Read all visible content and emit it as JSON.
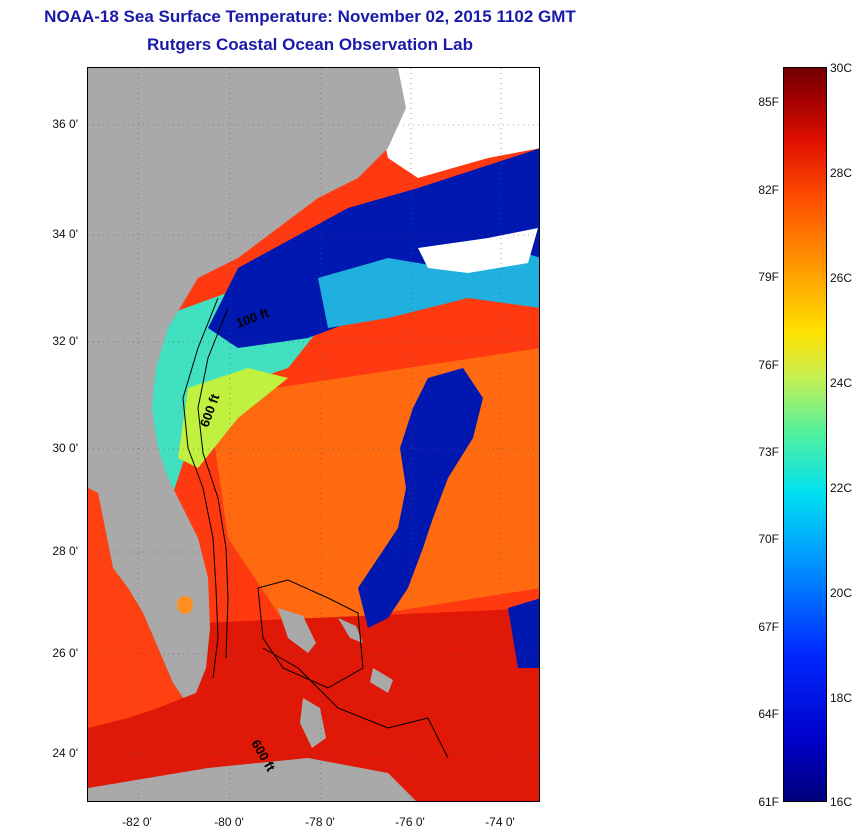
{
  "title": "NOAA-18 Sea Surface Temperature:  November 02, 2015 1102 GMT",
  "subtitle": "Rutgers Coastal Ocean Observation Lab",
  "map": {
    "lat_labels": [
      "36 0'",
      "34 0'",
      "32 0'",
      "30 0'",
      "28 0'",
      "26 0'",
      "24 0'"
    ],
    "lon_labels": [
      "-82 0'",
      "-80 0'",
      "-78 0'",
      "-76 0'",
      "-74 0'"
    ],
    "isobath_labels": [
      "100 ft",
      "600 ft",
      "600 ft"
    ],
    "colors": {
      "land": "#a9a9a9",
      "cold": "#0010a0",
      "warm": "#ff3010",
      "hot": "#c00000",
      "cloud": "#ffffff"
    }
  },
  "colorbar": {
    "fahrenheit_labels": [
      "85F",
      "82F",
      "79F",
      "76F",
      "73F",
      "70F",
      "67F",
      "64F",
      "61F"
    ],
    "celsius_labels": [
      "30C",
      "28C",
      "26C",
      "24C",
      "22C",
      "20C",
      "18C",
      "16C"
    ]
  }
}
